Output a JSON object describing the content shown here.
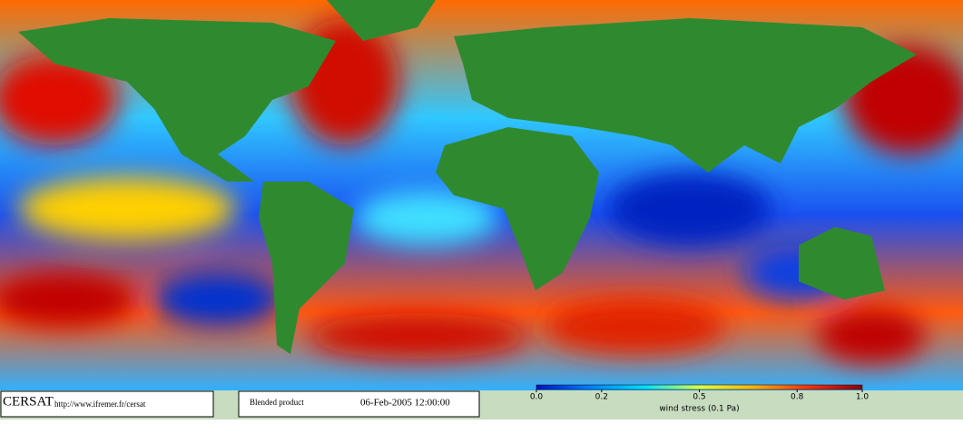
{
  "header": {
    "logo": "CERSAT",
    "url": "http://www.ifremer.fr/cersat",
    "product": "Blended product",
    "datetime": "06-Feb-2005 12:00:00"
  },
  "chart_data": {
    "type": "colorbar",
    "xlabel": "wind stress (0.1 Pa)",
    "xlim": [
      0,
      1
    ],
    "xticks": [
      {
        "value": 0,
        "label": "0.0"
      },
      0.2,
      0.5,
      0.8,
      {
        "value": 1,
        "label": "1.0"
      }
    ],
    "colors": [
      "#0010c0",
      "#0080ff",
      "#00e0ff",
      "#e0ff40",
      "#ffb000",
      "#ff3000",
      "#900000"
    ]
  }
}
